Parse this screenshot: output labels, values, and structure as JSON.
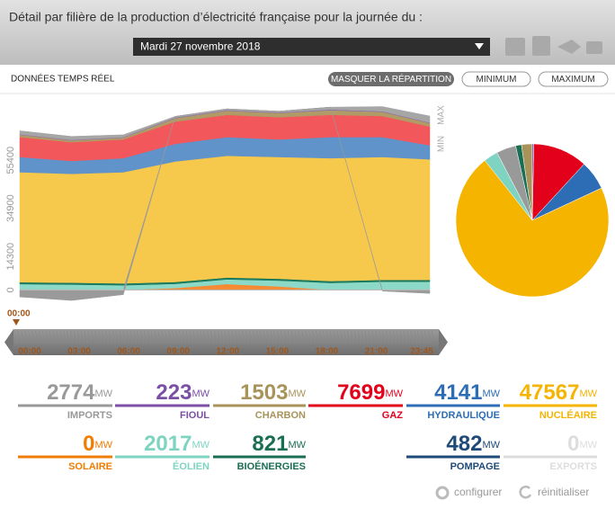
{
  "header": {
    "title": "Détail par filière de la production d’électricité française pour la journée du :",
    "date": "Mardi 27 novembre 2018"
  },
  "toolbar": {
    "section": "DONNÉES TEMPS RÉEL",
    "buttons": [
      "MASQUER LA RÉPARTITION",
      "MINIMUM",
      "MAXIMUM"
    ]
  },
  "chart": {
    "type": "area",
    "x": [
      "00:00",
      "03:00",
      "06:00",
      "09:00",
      "12:00",
      "15:00",
      "18:00",
      "21:00",
      "23:45"
    ],
    "ylim": [
      -6000,
      77000
    ],
    "yticks": [
      0,
      14300,
      34900,
      55400
    ],
    "max_label": "MAX",
    "min_label": "MIN",
    "series": [
      {
        "name": "Solaire",
        "color": "#f58a33",
        "values": [
          0,
          0,
          0,
          800,
          2500,
          1500,
          0,
          0,
          0
        ]
      },
      {
        "name": "Éolien",
        "color": "#8dd9c7",
        "values": [
          2500,
          2300,
          2000,
          1800,
          2000,
          2500,
          3000,
          3500,
          3500
        ]
      },
      {
        "name": "Bioénergies",
        "color": "#1a7a5e",
        "values": [
          800,
          800,
          800,
          800,
          800,
          800,
          800,
          800,
          800
        ]
      },
      {
        "name": "Nucléaire",
        "color": "#f6c84c",
        "values": [
          47000,
          46500,
          47500,
          51500,
          52000,
          52000,
          52500,
          52500,
          51500
        ]
      },
      {
        "name": "Hydraulique",
        "color": "#5f93c9",
        "values": [
          6500,
          5500,
          6000,
          7500,
          8000,
          7500,
          9000,
          8500,
          6000
        ]
      },
      {
        "name": "Gaz",
        "color": "#f2575b",
        "values": [
          8500,
          8000,
          8000,
          9500,
          9500,
          9500,
          9500,
          9000,
          8000
        ]
      },
      {
        "name": "Charbon",
        "color": "#b09a66",
        "values": [
          1000,
          800,
          800,
          1500,
          1800,
          1800,
          2000,
          1800,
          1500
        ]
      },
      {
        "name": "Fioul",
        "color": "#8a6bb0",
        "values": [
          200,
          200,
          200,
          250,
          250,
          250,
          300,
          250,
          220
        ]
      },
      {
        "name": "Imports",
        "color": "#a6a6a6",
        "values": [
          1500,
          1500,
          1000,
          500,
          500,
          500,
          1000,
          2000,
          2800
        ]
      },
      {
        "name": "Pompage",
        "color": "#9a9a9a",
        "values": [
          -3000,
          -4500,
          -2000,
          0,
          0,
          0,
          0,
          -500,
          -1500
        ]
      }
    ]
  },
  "timeline": {
    "current": "00:00"
  },
  "stats": {
    "unit": "MW",
    "items": [
      {
        "name": "IMPORTS",
        "value": 2774,
        "color": "#999999"
      },
      {
        "name": "FIOUL",
        "value": 223,
        "color": "#7b4fa6"
      },
      {
        "name": "CHARBON",
        "value": 1503,
        "color": "#a8935a"
      },
      {
        "name": "GAZ",
        "value": 7699,
        "color": "#e2001a"
      },
      {
        "name": "HYDRAULIQUE",
        "value": 4141,
        "color": "#2d6db5"
      },
      {
        "name": "NUCLÉAIRE",
        "value": 47567,
        "color": "#f5b400"
      },
      {
        "name": "SOLAIRE",
        "value": 0,
        "color": "#f07c00"
      },
      {
        "name": "ÉOLIEN",
        "value": 2017,
        "color": "#7fd4c1"
      },
      {
        "name": "BIOÉNERGIES",
        "value": 821,
        "color": "#1a6e54"
      },
      {
        "name": "POMPAGE",
        "value": 482,
        "color": "#1e4a7a"
      },
      {
        "name": "EXPORTS",
        "value": 0,
        "color": "#dddddd"
      }
    ]
  },
  "footer": {
    "configure": "configurer",
    "reset": "réinitialiser"
  }
}
